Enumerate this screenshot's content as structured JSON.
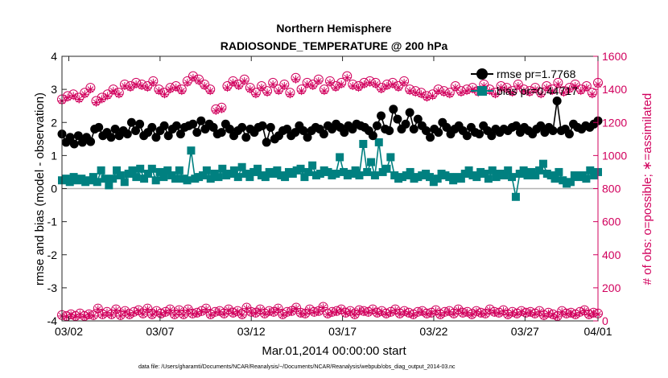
{
  "chart_data": {
    "type": "line",
    "title_lines": [
      "Northern Hemisphere",
      "RADIOSONDE_TEMPERATURE @ 200 hPa"
    ],
    "xlabel": "Mar.01,2014 00:00:00 start",
    "ylabel_left": "rmse and bias (model - observation)",
    "ylabel_right": "# of obs: o=possible; ∗=assimilated",
    "x_range": [
      1.625,
      31
    ],
    "x_ticks": [
      2,
      7,
      12,
      17,
      22,
      27,
      31
    ],
    "x_tick_labels": [
      "03/02",
      "03/07",
      "03/12",
      "03/17",
      "03/22",
      "03/27",
      "04/01"
    ],
    "ylim_left": [
      -4,
      4
    ],
    "y_ticks_left": [
      -4,
      -3,
      -2,
      -1,
      0,
      1,
      2,
      3,
      4
    ],
    "ylim_right": [
      0,
      1600
    ],
    "y_ticks_right": [
      0,
      200,
      400,
      600,
      800,
      1000,
      1200,
      1400,
      1600
    ],
    "zero_line": 0,
    "series": [
      {
        "name": "rmse",
        "legend_label": "rmse pr=1.7768",
        "axis": "left",
        "color": "#000000",
        "marker": "circle",
        "values": [
          1.65,
          1.4,
          1.55,
          1.35,
          1.6,
          1.4,
          1.55,
          1.42,
          1.8,
          1.85,
          1.6,
          1.7,
          1.55,
          1.8,
          1.6,
          1.75,
          1.65,
          2.0,
          1.75,
          1.95,
          1.6,
          1.7,
          1.85,
          1.55,
          1.75,
          1.9,
          1.6,
          1.8,
          1.9,
          1.65,
          1.85,
          1.9,
          1.95,
          1.7,
          2.05,
          1.8,
          1.95,
          1.85,
          1.65,
          1.7,
          1.95,
          1.8,
          1.6,
          1.75,
          1.85,
          1.55,
          1.8,
          1.7,
          1.85,
          1.9,
          1.4,
          1.85,
          1.5,
          1.6,
          1.75,
          1.8,
          1.6,
          1.7,
          1.9,
          1.75,
          1.55,
          1.75,
          1.85,
          1.8,
          1.65,
          1.9,
          1.8,
          1.95,
          1.85,
          1.7,
          1.9,
          1.8,
          1.95,
          1.9,
          1.85,
          1.75,
          1.6,
          1.9,
          2.2,
          1.8,
          1.75,
          2.4,
          2.1,
          1.8,
          1.95,
          2.3,
          1.8,
          2.1,
          1.9,
          1.75,
          1.55,
          1.8,
          1.7,
          2.0,
          1.85,
          1.65,
          1.8,
          1.9,
          1.75,
          1.6,
          1.85,
          1.7,
          1.65,
          1.9,
          1.75,
          1.6,
          1.8,
          1.7,
          1.8,
          1.75,
          1.85,
          1.9,
          1.7,
          1.85,
          1.75,
          1.65,
          1.8,
          1.9,
          1.7,
          1.85,
          1.75,
          2.65,
          1.75,
          1.8,
          1.65,
          1.95,
          1.85,
          1.8,
          1.9,
          1.85,
          1.95,
          2.05
        ]
      },
      {
        "name": "bias",
        "legend_label": "bias pr=0.44717",
        "axis": "left",
        "color": "#008080",
        "marker": "square",
        "values": [
          0.25,
          0.3,
          0.2,
          0.35,
          0.25,
          0.3,
          0.2,
          0.25,
          0.35,
          0.2,
          0.55,
          0.3,
          0.1,
          0.3,
          0.55,
          0.4,
          0.2,
          0.45,
          0.55,
          0.35,
          0.6,
          0.3,
          0.45,
          0.6,
          0.25,
          0.5,
          0.35,
          0.55,
          0.4,
          0.3,
          0.55,
          0.3,
          0.25,
          1.15,
          0.3,
          0.35,
          0.4,
          0.55,
          0.3,
          0.45,
          0.35,
          0.6,
          0.4,
          0.45,
          0.55,
          0.35,
          0.65,
          0.45,
          0.35,
          0.5,
          0.6,
          0.4,
          0.35,
          0.5,
          0.45,
          0.55,
          0.4,
          0.35,
          0.5,
          0.45,
          0.55,
          0.6,
          0.35,
          0.5,
          0.7,
          0.4,
          0.45,
          0.55,
          0.5,
          0.4,
          0.45,
          0.95,
          0.5,
          0.4,
          0.45,
          0.55,
          0.4,
          1.35,
          0.5,
          0.8,
          0.4,
          1.4,
          0.5,
          0.6,
          0.95,
          0.4,
          0.3,
          0.35,
          0.4,
          0.5,
          0.3,
          0.35,
          0.4,
          0.45,
          0.35,
          0.2,
          0.3,
          0.45,
          0.4,
          0.35,
          0.25,
          0.35,
          0.3,
          0.45,
          0.55,
          0.4,
          0.35,
          0.5,
          0.45,
          0.3,
          0.55,
          0.35,
          0.45,
          0.4,
          0.55,
          0.35,
          -0.25,
          0.45,
          0.55,
          0.4,
          0.5,
          0.4,
          0.55,
          0.75,
          0.45,
          0.4,
          0.3,
          0.5,
          0.25,
          0.15,
          0.2,
          0.4,
          0.35,
          0.4,
          0.3,
          0.55,
          0.4,
          0.5
        ]
      },
      {
        "name": "possible",
        "axis": "right",
        "color": "#d1005d",
        "marker": "circle-open",
        "values": [
          1340,
          1360,
          1370,
          1350,
          1380,
          1410,
          1330,
          1350,
          1370,
          1400,
          1380,
          1430,
          1420,
          1440,
          1430,
          1420,
          1450,
          1400,
          1380,
          1410,
          1420,
          1400,
          1450,
          1480,
          1460,
          1430,
          1400,
          1280,
          1290,
          1420,
          1450,
          1430,
          1460,
          1410,
          1380,
          1420,
          1390,
          1440,
          1400,
          1430,
          1380,
          1470,
          1400,
          1440,
          1430,
          1460,
          1400,
          1450,
          1420,
          1440,
          1480,
          1430,
          1420,
          1440,
          1450,
          1440,
          1410,
          1430,
          1440,
          1420,
          1450,
          1400,
          1390,
          1380,
          1360,
          1370,
          1400,
          1390,
          1380,
          1420,
          1390,
          1400,
          1410,
          1390,
          1430,
          1400,
          1380,
          1420,
          1410,
          1390,
          1430,
          1400,
          1390,
          1410,
          1380,
          1420,
          1400,
          1440,
          1390,
          1410,
          1430,
          1400,
          1420,
          1380,
          1440
        ]
      },
      {
        "name": "assimilated",
        "axis": "right",
        "color": "#d1005d",
        "marker": "star",
        "values": [
          1330,
          1350,
          1360,
          1340,
          1370,
          1400,
          1320,
          1340,
          1360,
          1390,
          1370,
          1420,
          1410,
          1430,
          1420,
          1410,
          1440,
          1390,
          1370,
          1400,
          1410,
          1390,
          1440,
          1470,
          1450,
          1420,
          1390,
          1270,
          1280,
          1410,
          1440,
          1420,
          1450,
          1400,
          1370,
          1410,
          1380,
          1430,
          1390,
          1420,
          1370,
          1460,
          1390,
          1430,
          1420,
          1450,
          1390,
          1440,
          1410,
          1430,
          1470,
          1420,
          1410,
          1430,
          1440,
          1430,
          1400,
          1420,
          1430,
          1410,
          1440,
          1390,
          1380,
          1370,
          1350,
          1360,
          1390,
          1380,
          1370,
          1410,
          1380,
          1390,
          1400,
          1380,
          1420,
          1390,
          1370,
          1410,
          1400,
          1380,
          1420,
          1390,
          1380,
          1400,
          1370,
          1410,
          1390,
          1430,
          1380,
          1400,
          1420,
          1390,
          1410,
          1370,
          1430
        ]
      },
      {
        "name": "possible_bottom",
        "axis": "right",
        "color": "#d1005d",
        "marker": "circle-open",
        "values": [
          35,
          30,
          40,
          30,
          45,
          30,
          40,
          35,
          75,
          40,
          55,
          40,
          70,
          35,
          60,
          40,
          55,
          65,
          45,
          75,
          40,
          60,
          45,
          55,
          70,
          40,
          65,
          40,
          70,
          45,
          50,
          60,
          75,
          40,
          55,
          60,
          45,
          70,
          50,
          60,
          40,
          80,
          55,
          50,
          70,
          45,
          60,
          55,
          75,
          40,
          55,
          60,
          80,
          50,
          45,
          70,
          55,
          60,
          85,
          45,
          55,
          60,
          70,
          50,
          60,
          40,
          65,
          60,
          55,
          70,
          50,
          60,
          45,
          55,
          70,
          45,
          60,
          50,
          40,
          55,
          60,
          45,
          50,
          65,
          40,
          55,
          60,
          45,
          70,
          50,
          55,
          40,
          60,
          50,
          45,
          70,
          55,
          50,
          65,
          40,
          55,
          45,
          60,
          50,
          55,
          45,
          60,
          35,
          50,
          40,
          30,
          60,
          45,
          50,
          40,
          55,
          65,
          40,
          50,
          45
        ]
      },
      {
        "name": "assimilated_bottom",
        "axis": "right",
        "color": "#d1005d",
        "marker": "star",
        "values": [
          30,
          25,
          35,
          25,
          40,
          25,
          35,
          30,
          70,
          35,
          50,
          35,
          65,
          30,
          55,
          35,
          50,
          60,
          40,
          70,
          35,
          55,
          40,
          50,
          65,
          35,
          60,
          35,
          65,
          40,
          45,
          55,
          70,
          35,
          50,
          55,
          40,
          65,
          45,
          55,
          35,
          75,
          50,
          45,
          65,
          40,
          55,
          50,
          70,
          35,
          50,
          55,
          75,
          45,
          40,
          65,
          50,
          55,
          80,
          40,
          50,
          55,
          65,
          45,
          55,
          35,
          60,
          55,
          50,
          65,
          45,
          55,
          40,
          50,
          65,
          40,
          55,
          45,
          35,
          50,
          55,
          40,
          45,
          60,
          35,
          50,
          55,
          40,
          65,
          45,
          50,
          35,
          55,
          45,
          40,
          65,
          50,
          45,
          60,
          35,
          50,
          40,
          55,
          45,
          50,
          40,
          55,
          30,
          45,
          35,
          25,
          55,
          40,
          45,
          35,
          50,
          60,
          35,
          45,
          40
        ]
      }
    ]
  },
  "footer": {
    "data_file": "data file: /Users/gharamti/Documents/NCAR/Reanalysis/~/Documents/NCAR/Reanalysis/webpub/obs_diag_output_2014-03.nc"
  }
}
